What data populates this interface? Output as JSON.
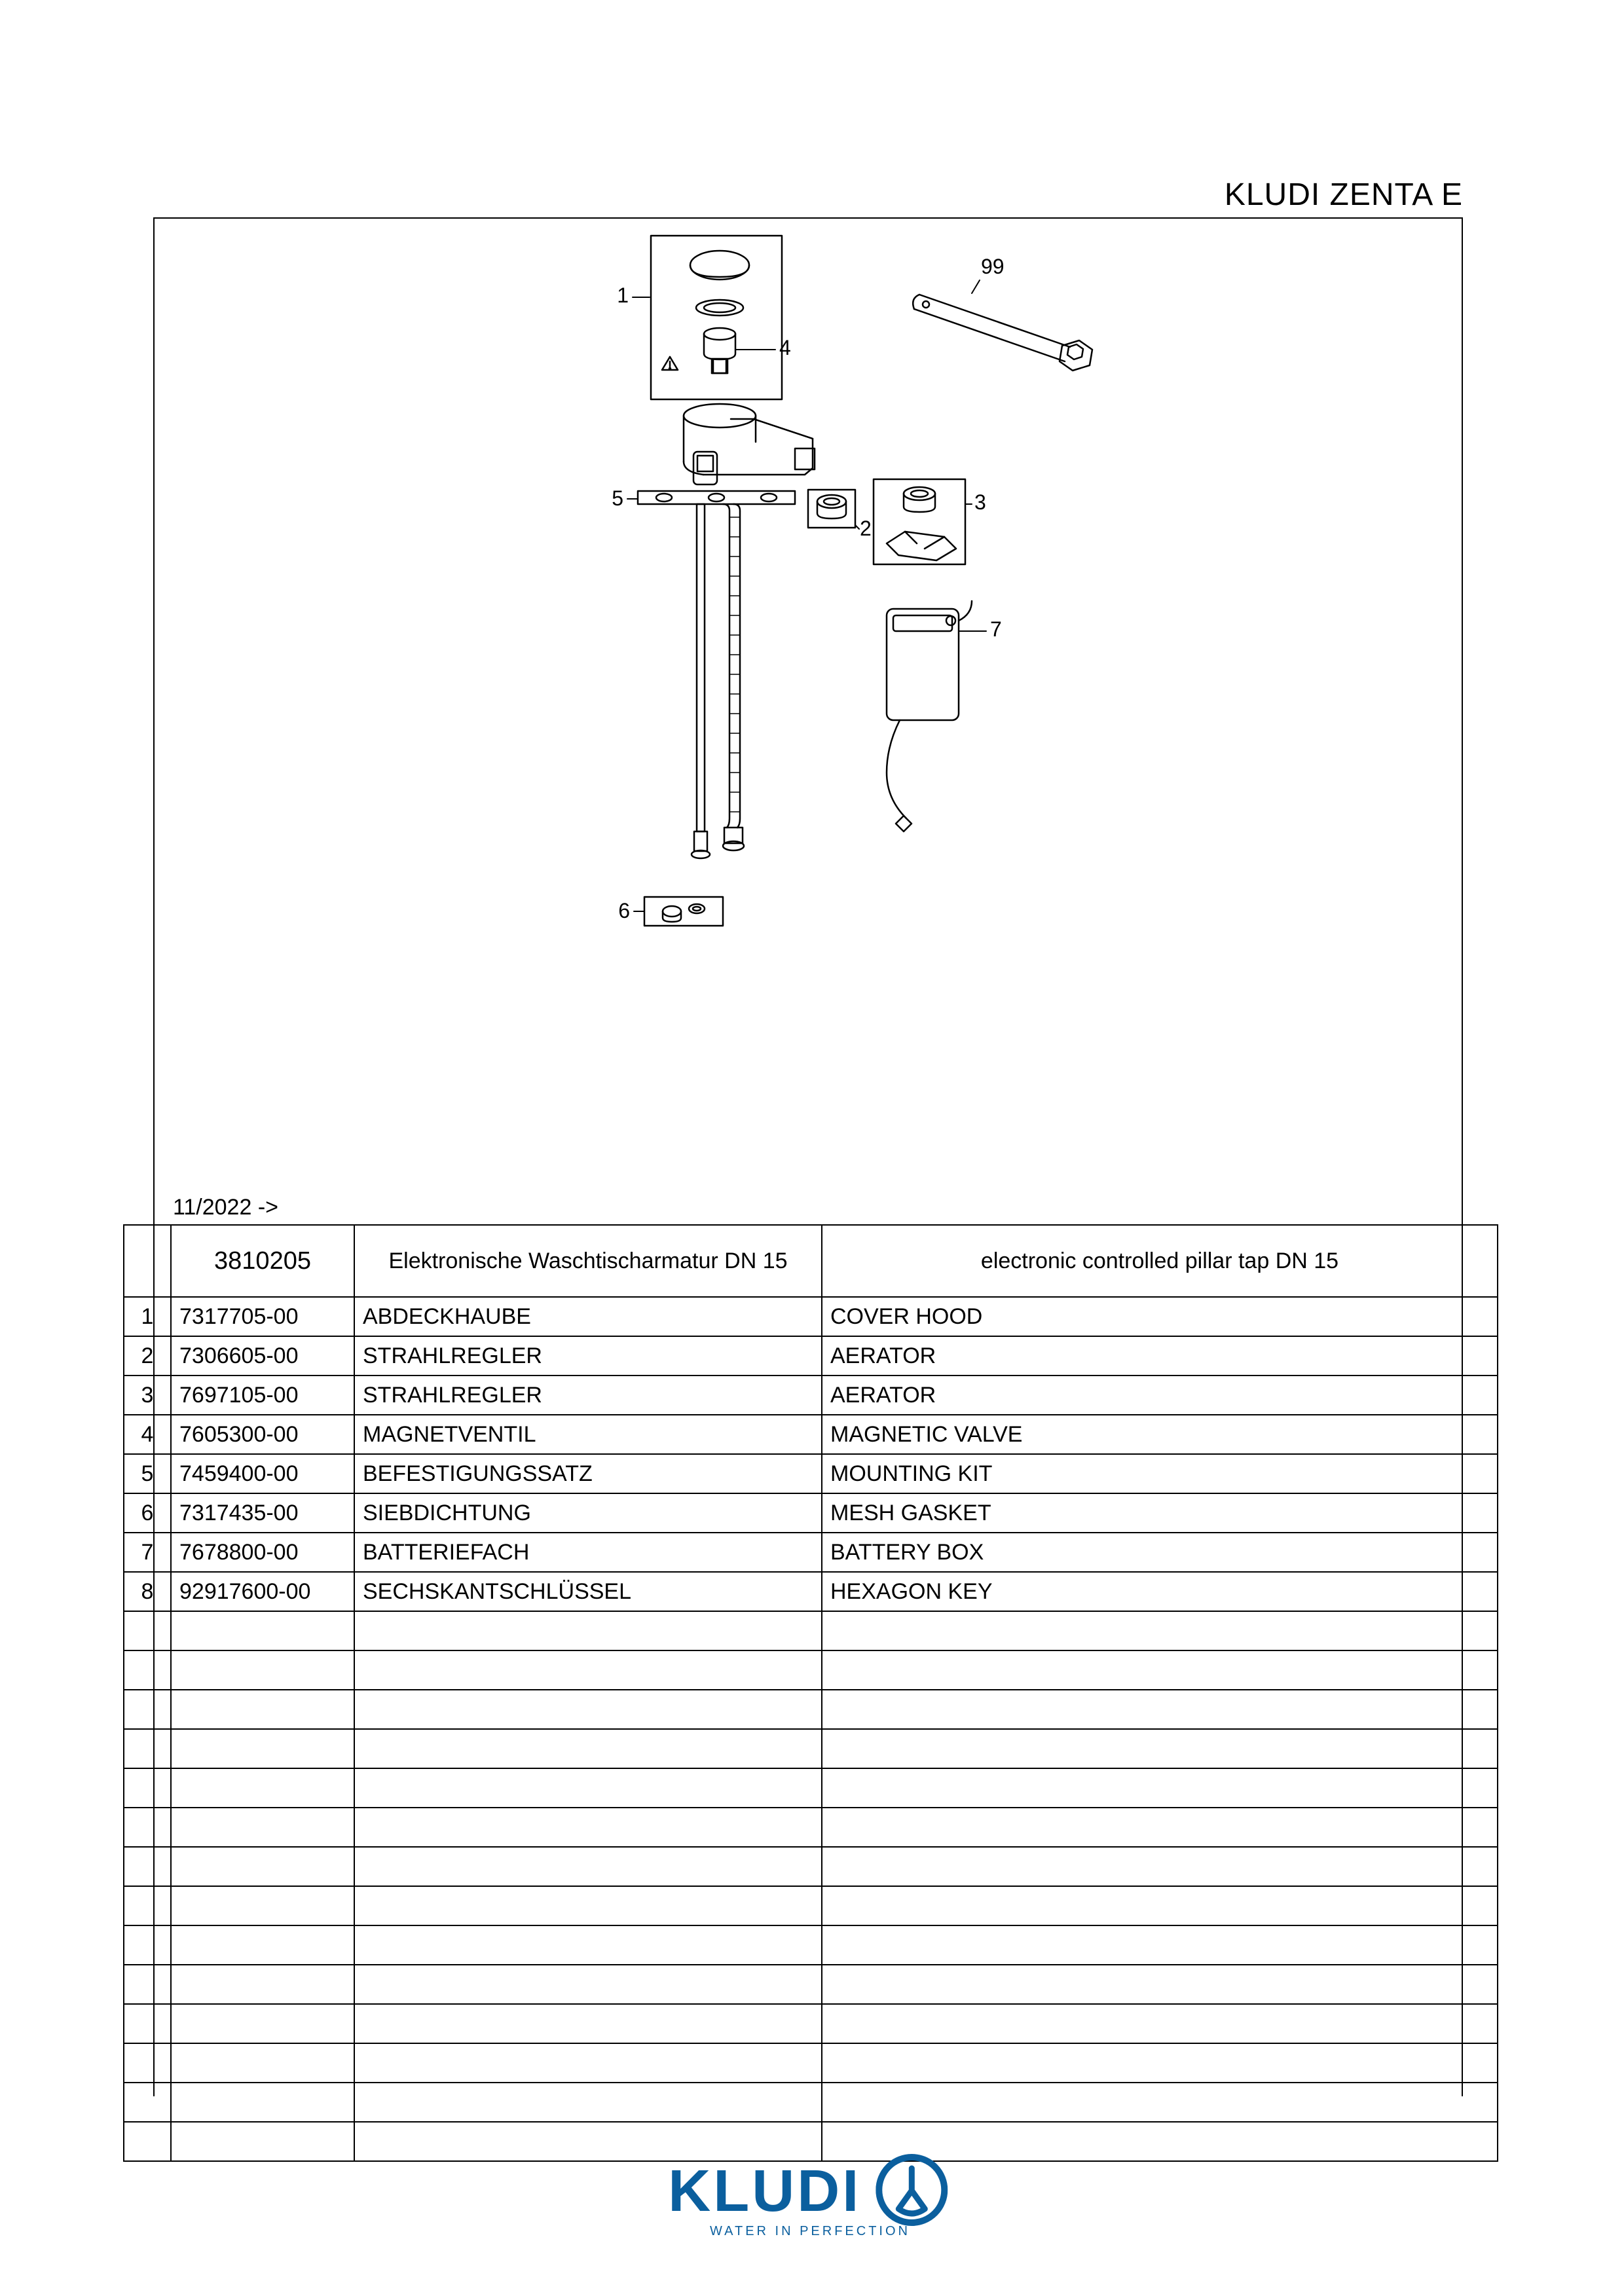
{
  "title": "KLUDI ZENTA E",
  "date": "11/2022 ->",
  "header": {
    "product_code": "3810205",
    "desc_de": "Elektronische Waschtischarmatur DN 15",
    "desc_en": "electronic controlled pillar tap DN 15"
  },
  "rows": [
    {
      "idx": "1",
      "part": "7317705-00",
      "de": "ABDECKHAUBE",
      "en": "COVER HOOD"
    },
    {
      "idx": "2",
      "part": "7306605-00",
      "de": "STRAHLREGLER",
      "en": "AERATOR"
    },
    {
      "idx": "3",
      "part": "7697105-00",
      "de": "STRAHLREGLER",
      "en": "AERATOR"
    },
    {
      "idx": "4",
      "part": "7605300-00",
      "de": "MAGNETVENTIL",
      "en": "MAGNETIC VALVE"
    },
    {
      "idx": "5",
      "part": "7459400-00",
      "de": "BEFESTIGUNGSSATZ",
      "en": "MOUNTING KIT"
    },
    {
      "idx": "6",
      "part": "7317435-00",
      "de": "SIEBDICHTUNG",
      "en": "MESH GASKET"
    },
    {
      "idx": "7",
      "part": "7678800-00",
      "de": "BATTERIEFACH",
      "en": "BATTERY BOX"
    },
    {
      "idx": "8",
      "part": "92917600-00",
      "de": "SECHSKANTSCHLÜSSEL",
      "en": "HEXAGON KEY"
    }
  ],
  "empty_rows": 14,
  "callouts": [
    "1",
    "2",
    "3",
    "4",
    "5",
    "6",
    "7",
    "99"
  ],
  "logo": {
    "main": "KLUDI",
    "sub": "WATER IN PERFECTION",
    "color": "#0b5f9e"
  }
}
